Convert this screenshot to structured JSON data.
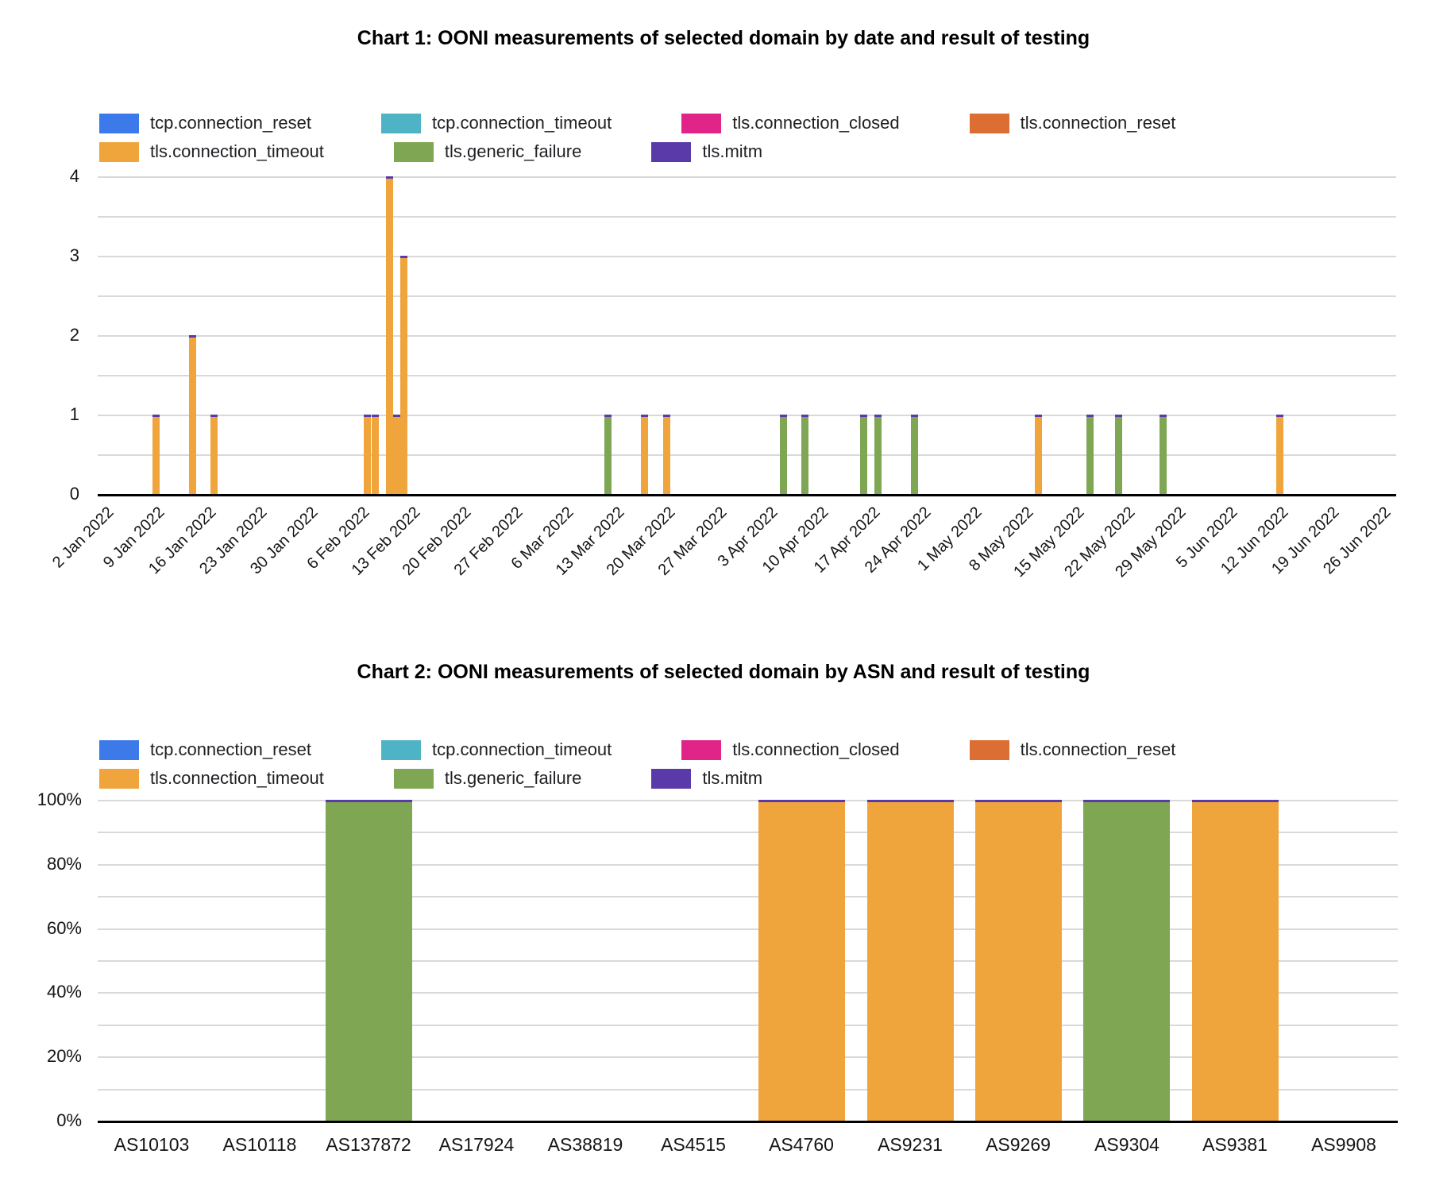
{
  "chart_data": [
    {
      "type": "bar",
      "subtype": "stacked-column-by-date",
      "title": "Chart 1: OONI measurements of selected domain by date and result of testing",
      "series": [
        {
          "name": "tcp.connection_reset",
          "color": "#3B7AE8"
        },
        {
          "name": "tcp.connection_timeout",
          "color": "#4FB3C6"
        },
        {
          "name": "tls.connection_closed",
          "color": "#E02488"
        },
        {
          "name": "tls.connection_reset",
          "color": "#DD6E33"
        },
        {
          "name": "tls.connection_timeout",
          "color": "#F0A53C"
        },
        {
          "name": "tls.generic_failure",
          "color": "#7FA652"
        },
        {
          "name": "tls.mitm",
          "color": "#5A39A8"
        }
      ],
      "legend_position": "top-left, two rows",
      "bar_top_cap_series": "tls.mitm",
      "y_axis": {
        "min": 0,
        "max": 4,
        "tick_labels": [
          "0",
          "1",
          "2",
          "3",
          "4"
        ],
        "minor_grid_step": 0.5,
        "grid": true
      },
      "x_axis": {
        "start_date": "2022-01-01",
        "end_date": "2022-06-28",
        "tick_labels": [
          "2 Jan 2022",
          "9 Jan 2022",
          "16 Jan 2022",
          "23 Jan 2022",
          "30 Jan 2022",
          "6 Feb 2022",
          "13 Feb 2022",
          "20 Feb 2022",
          "27 Feb 2022",
          "6 Mar 2022",
          "13 Mar 2022",
          "20 Mar 2022",
          "27 Mar 2022",
          "3 Apr 2022",
          "10 Apr 2022",
          "17 Apr 2022",
          "24 Apr 2022",
          "1 May 2022",
          "8 May 2022",
          "15 May 2022",
          "22 May 2022",
          "29 May 2022",
          "5 Jun 2022",
          "12 Jun 2022",
          "19 Jun 2022",
          "26 Jun 2022"
        ],
        "label_rotation_deg": -45
      },
      "bars": [
        {
          "date": "2022-01-09",
          "value": 1,
          "series": "tls.connection_timeout"
        },
        {
          "date": "2022-01-14",
          "value": 2,
          "series": "tls.connection_timeout"
        },
        {
          "date": "2022-01-17",
          "value": 1,
          "series": "tls.connection_timeout"
        },
        {
          "date": "2022-02-07",
          "value": 1,
          "series": "tls.connection_timeout"
        },
        {
          "date": "2022-02-08",
          "value": 1,
          "series": "tls.connection_timeout"
        },
        {
          "date": "2022-02-10",
          "value": 4,
          "series": "tls.connection_timeout"
        },
        {
          "date": "2022-02-11",
          "value": 1,
          "series": "tls.connection_timeout"
        },
        {
          "date": "2022-02-12",
          "value": 3,
          "series": "tls.connection_timeout"
        },
        {
          "date": "2022-03-12",
          "value": 1,
          "series": "tls.generic_failure"
        },
        {
          "date": "2022-03-17",
          "value": 1,
          "series": "tls.connection_timeout"
        },
        {
          "date": "2022-03-20",
          "value": 1,
          "series": "tls.connection_timeout"
        },
        {
          "date": "2022-04-05",
          "value": 1,
          "series": "tls.generic_failure"
        },
        {
          "date": "2022-04-08",
          "value": 1,
          "series": "tls.generic_failure"
        },
        {
          "date": "2022-04-16",
          "value": 1,
          "series": "tls.generic_failure"
        },
        {
          "date": "2022-04-18",
          "value": 1,
          "series": "tls.generic_failure"
        },
        {
          "date": "2022-04-23",
          "value": 1,
          "series": "tls.generic_failure"
        },
        {
          "date": "2022-05-10",
          "value": 1,
          "series": "tls.connection_timeout"
        },
        {
          "date": "2022-05-17",
          "value": 1,
          "series": "tls.generic_failure"
        },
        {
          "date": "2022-05-21",
          "value": 1,
          "series": "tls.generic_failure"
        },
        {
          "date": "2022-05-27",
          "value": 1,
          "series": "tls.generic_failure"
        },
        {
          "date": "2022-06-12",
          "value": 1,
          "series": "tls.connection_timeout"
        }
      ]
    },
    {
      "type": "bar",
      "subtype": "100%-stacked-column-by-asn",
      "title": "Chart 2: OONI measurements of selected domain by ASN and result of testing",
      "series": [
        {
          "name": "tcp.connection_reset",
          "color": "#3B7AE8"
        },
        {
          "name": "tcp.connection_timeout",
          "color": "#4FB3C6"
        },
        {
          "name": "tls.connection_closed",
          "color": "#E02488"
        },
        {
          "name": "tls.connection_reset",
          "color": "#DD6E33"
        },
        {
          "name": "tls.connection_timeout",
          "color": "#F0A53C"
        },
        {
          "name": "tls.generic_failure",
          "color": "#7FA652"
        },
        {
          "name": "tls.mitm",
          "color": "#5A39A8"
        }
      ],
      "legend_position": "top-left, two rows",
      "bar_top_cap_series": "tls.mitm",
      "y_axis": {
        "min": 0,
        "max": 100,
        "tick_labels": [
          "0%",
          "20%",
          "40%",
          "60%",
          "80%",
          "100%"
        ],
        "minor_grid_step": 10,
        "grid": true
      },
      "categories": [
        "AS10103",
        "AS10118",
        "AS137872",
        "AS17924",
        "AS38819",
        "AS4515",
        "AS4760",
        "AS9231",
        "AS9269",
        "AS9304",
        "AS9381",
        "AS9908"
      ],
      "bars": [
        {
          "category": "AS137872",
          "value": 100,
          "series": "tls.generic_failure"
        },
        {
          "category": "AS4760",
          "value": 100,
          "series": "tls.connection_timeout"
        },
        {
          "category": "AS9231",
          "value": 100,
          "series": "tls.connection_timeout"
        },
        {
          "category": "AS9269",
          "value": 100,
          "series": "tls.connection_timeout"
        },
        {
          "category": "AS9304",
          "value": 100,
          "series": "tls.generic_failure"
        },
        {
          "category": "AS9381",
          "value": 100,
          "series": "tls.connection_timeout"
        }
      ]
    }
  ]
}
